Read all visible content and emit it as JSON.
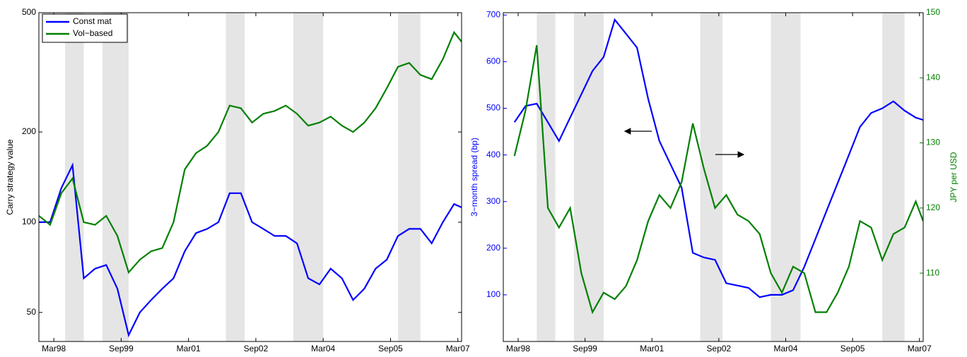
{
  "chart_data": [
    {
      "type": "line",
      "y_label": "Carry strategy value",
      "log_y": true,
      "legend": "upper left",
      "xlim": [
        "1997-11",
        "2007-04"
      ],
      "ylim": [
        40,
        500
      ],
      "yticks": [
        50,
        100,
        200,
        500
      ],
      "xticks": [
        {
          "value": "1998-03",
          "label": "Mar98"
        },
        {
          "value": "1999-09",
          "label": "Sep99"
        },
        {
          "value": "2001-03",
          "label": "Mar01"
        },
        {
          "value": "2002-09",
          "label": "Sep02"
        },
        {
          "value": "2004-03",
          "label": "Mar04"
        },
        {
          "value": "2005-09",
          "label": "Sep05"
        },
        {
          "value": "2007-03",
          "label": "Mar07"
        }
      ],
      "shaded": [
        [
          "1998-06",
          "1998-11"
        ],
        [
          "1999-04",
          "1999-11"
        ],
        [
          "2002-01",
          "2002-06"
        ],
        [
          "2003-07",
          "2004-03"
        ],
        [
          "2005-11",
          "2006-05"
        ]
      ],
      "x": [
        "1997-11",
        "1998-02",
        "1998-05",
        "1998-08",
        "1998-11",
        "1999-02",
        "1999-05",
        "1999-08",
        "1999-11",
        "2000-02",
        "2000-05",
        "2000-08",
        "2000-11",
        "2001-02",
        "2001-05",
        "2001-08",
        "2001-11",
        "2002-02",
        "2002-05",
        "2002-08",
        "2002-11",
        "2003-02",
        "2003-05",
        "2003-08",
        "2003-11",
        "2004-02",
        "2004-05",
        "2004-08",
        "2004-11",
        "2005-02",
        "2005-05",
        "2005-08",
        "2005-11",
        "2006-02",
        "2006-05",
        "2006-08",
        "2006-11",
        "2007-02",
        "2007-04"
      ],
      "series": [
        {
          "name": "Const mat",
          "color": "#0000ff",
          "values": [
            100,
            100,
            130,
            155,
            65,
            70,
            72,
            60,
            42,
            50,
            55,
            60,
            65,
            80,
            92,
            95,
            100,
            125,
            125,
            100,
            95,
            90,
            90,
            85,
            65,
            62,
            70,
            65,
            55,
            60,
            70,
            75,
            90,
            95,
            95,
            85,
            100,
            115,
            112
          ]
        },
        {
          "name": "Vol−based",
          "color": "#008000",
          "values": [
            105,
            98,
            125,
            140,
            100,
            98,
            105,
            90,
            68,
            75,
            80,
            82,
            100,
            150,
            170,
            180,
            200,
            245,
            240,
            215,
            230,
            235,
            245,
            230,
            210,
            215,
            225,
            210,
            200,
            215,
            240,
            280,
            330,
            340,
            310,
            300,
            350,
            430,
            400
          ]
        }
      ]
    },
    {
      "type": "line",
      "y_label": "3−month spread (bp)",
      "y2_label": "JPY per USD",
      "xlim": [
        "1997-11",
        "2007-04"
      ],
      "ylim": [
        0,
        705
      ],
      "yticks": [
        100,
        200,
        300,
        400,
        500,
        600,
        700
      ],
      "y2lim": [
        99.5,
        150
      ],
      "y2ticks": [
        110,
        120,
        130,
        140,
        150
      ],
      "xticks": [
        {
          "value": "1998-03",
          "label": "Mar98"
        },
        {
          "value": "1999-09",
          "label": "Sep99"
        },
        {
          "value": "2001-03",
          "label": "Mar01"
        },
        {
          "value": "2002-09",
          "label": "Sep02"
        },
        {
          "value": "2004-03",
          "label": "Mar04"
        },
        {
          "value": "2005-09",
          "label": "Sep05"
        },
        {
          "value": "2007-03",
          "label": "Mar07"
        }
      ],
      "shaded": [
        [
          "1998-08",
          "1999-01"
        ],
        [
          "1999-06",
          "2000-02"
        ],
        [
          "2002-04",
          "2002-10"
        ],
        [
          "2003-11",
          "2004-07"
        ],
        [
          "2006-05",
          "2006-11"
        ]
      ],
      "x": [
        "1998-02",
        "1998-05",
        "1998-08",
        "1998-11",
        "1999-02",
        "1999-05",
        "1999-08",
        "1999-11",
        "2000-02",
        "2000-05",
        "2000-08",
        "2000-11",
        "2001-02",
        "2001-05",
        "2001-08",
        "2001-11",
        "2002-02",
        "2002-05",
        "2002-08",
        "2002-11",
        "2003-02",
        "2003-05",
        "2003-08",
        "2003-11",
        "2004-02",
        "2004-05",
        "2004-08",
        "2004-11",
        "2005-02",
        "2005-05",
        "2005-08",
        "2005-11",
        "2006-02",
        "2006-05",
        "2006-08",
        "2006-11",
        "2007-02",
        "2007-04"
      ],
      "series": [
        {
          "color": "#0000ff",
          "values": [
            470,
            505,
            510,
            470,
            430,
            480,
            530,
            580,
            610,
            690,
            660,
            630,
            520,
            430,
            380,
            330,
            190,
            180,
            175,
            125,
            120,
            115,
            95,
            100,
            100,
            110,
            160,
            220,
            280,
            340,
            400,
            460,
            490,
            500,
            515,
            495,
            480,
            475
          ]
        },
        {
          "color": "#008000",
          "axis": "y2",
          "values": [
            128,
            135,
            145,
            120,
            117,
            120,
            110,
            104,
            107,
            106,
            108,
            112,
            118,
            122,
            120,
            124,
            133,
            126,
            120,
            122,
            119,
            118,
            116,
            110,
            107,
            111,
            110,
            104,
            104,
            107,
            111,
            118,
            117,
            112,
            116,
            117,
            121,
            118
          ]
        }
      ]
    }
  ]
}
